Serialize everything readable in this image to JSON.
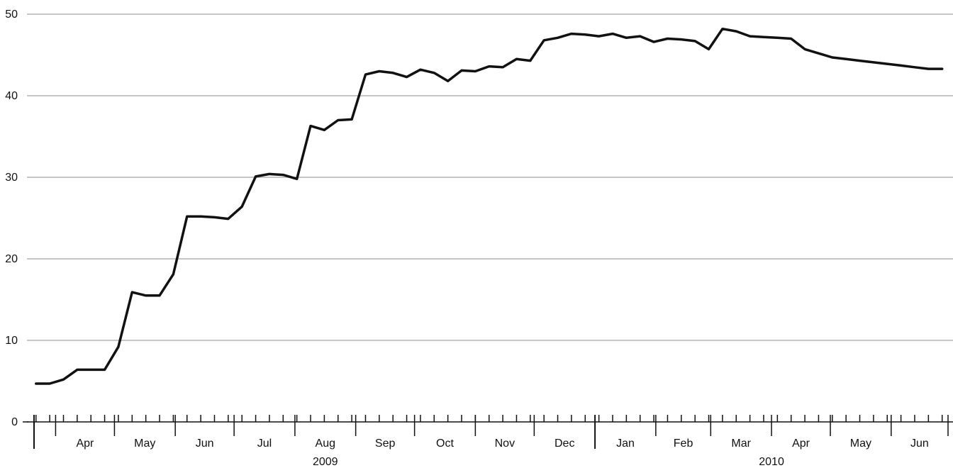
{
  "chart_data": {
    "type": "line",
    "title": "",
    "xlabel": "",
    "ylabel": "",
    "ylim": [
      0,
      50
    ],
    "y_ticks": [
      0,
      10,
      20,
      30,
      40,
      50
    ],
    "grid": "horizontal",
    "x_start": "2009-03-21",
    "x_end": "2010-06-30",
    "months": [
      {
        "label": "Apr",
        "year": "2009"
      },
      {
        "label": "May",
        "year": "2009"
      },
      {
        "label": "Jun",
        "year": "2009"
      },
      {
        "label": "Jul",
        "year": "2009"
      },
      {
        "label": "Aug",
        "year": "2009"
      },
      {
        "label": "Sep",
        "year": "2009"
      },
      {
        "label": "Oct",
        "year": "2009"
      },
      {
        "label": "Nov",
        "year": "2009"
      },
      {
        "label": "Dec",
        "year": "2009"
      },
      {
        "label": "Jan",
        "year": "2010"
      },
      {
        "label": "Feb",
        "year": "2010"
      },
      {
        "label": "Mar",
        "year": "2010"
      },
      {
        "label": "Apr",
        "year": "2010"
      },
      {
        "label": "May",
        "year": "2010"
      },
      {
        "label": "Jun",
        "year": "2010"
      }
    ],
    "years": [
      "2009",
      "2010"
    ],
    "x": [
      "2009-03-22",
      "2009-03-29",
      "2009-04-05",
      "2009-04-12",
      "2009-04-19",
      "2009-04-26",
      "2009-05-03",
      "2009-05-10",
      "2009-05-17",
      "2009-05-24",
      "2009-05-31",
      "2009-06-07",
      "2009-06-14",
      "2009-06-21",
      "2009-06-28",
      "2009-07-05",
      "2009-07-12",
      "2009-07-19",
      "2009-07-26",
      "2009-08-02",
      "2009-08-09",
      "2009-08-16",
      "2009-08-23",
      "2009-08-30",
      "2009-09-06",
      "2009-09-13",
      "2009-09-20",
      "2009-09-27",
      "2009-10-04",
      "2009-10-11",
      "2009-10-18",
      "2009-10-25",
      "2009-11-01",
      "2009-11-08",
      "2009-11-15",
      "2009-11-22",
      "2009-11-29",
      "2009-12-06",
      "2009-12-13",
      "2009-12-20",
      "2009-12-27",
      "2010-01-03",
      "2010-01-10",
      "2010-01-17",
      "2010-01-24",
      "2010-01-31",
      "2010-02-07",
      "2010-02-14",
      "2010-02-21",
      "2010-02-28",
      "2010-03-07",
      "2010-03-14",
      "2010-03-21",
      "2010-03-28",
      "2010-04-04",
      "2010-04-11",
      "2010-04-18",
      "2010-04-25",
      "2010-05-02",
      "2010-05-09",
      "2010-05-16",
      "2010-05-23",
      "2010-05-30",
      "2010-06-06",
      "2010-06-13",
      "2010-06-20",
      "2010-06-27"
    ],
    "series": [
      {
        "values": [
          4.7,
          4.7,
          5.2,
          6.4,
          6.4,
          6.4,
          9.2,
          15.9,
          15.5,
          15.5,
          18.1,
          25.2,
          25.2,
          25.1,
          24.9,
          26.4,
          30.1,
          30.4,
          30.3,
          29.8,
          36.3,
          35.8,
          37.0,
          37.1,
          42.6,
          43.0,
          42.8,
          42.3,
          43.2,
          42.8,
          41.8,
          43.1,
          43.0,
          43.6,
          43.5,
          44.5,
          44.3,
          46.8,
          47.1,
          47.6,
          47.5,
          47.3,
          47.6,
          47.1,
          47.3,
          46.6,
          47.0,
          46.9,
          46.7,
          45.7,
          48.2,
          47.9,
          47.3,
          47.2,
          47.1,
          47.0,
          45.7,
          45.2,
          44.7,
          44.5,
          44.3,
          44.1,
          43.9,
          43.7,
          43.5,
          43.3,
          43.3
        ]
      }
    ]
  }
}
